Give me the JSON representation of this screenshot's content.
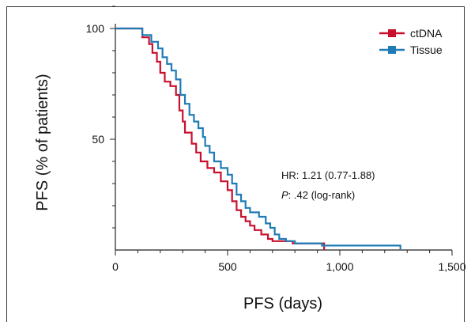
{
  "chart_data": {
    "type": "line",
    "step": true,
    "xlabel": "PFS (days)",
    "ylabel": "PFS (% of patients)",
    "xlim": [
      0,
      1500
    ],
    "ylim": [
      0,
      110
    ],
    "x_ticks": [
      0,
      500,
      1000,
      1500
    ],
    "x_tick_labels": [
      "0",
      "500",
      "1,000",
      "1,500"
    ],
    "y_ticks": [
      50,
      100
    ],
    "y_tick_labels": [
      "50",
      "100"
    ],
    "legend_position": "top-right",
    "annotations": {
      "hr": "HR: 1.21 (0.77-1.88)",
      "p_label": "P",
      "p_rest": ": .42 (log-rank)"
    },
    "series": [
      {
        "name": "ctDNA",
        "color": "#c8102e",
        "points": [
          [
            0,
            100
          ],
          [
            115,
            100
          ],
          [
            120,
            96
          ],
          [
            150,
            93
          ],
          [
            165,
            89
          ],
          [
            185,
            85
          ],
          [
            200,
            80
          ],
          [
            220,
            76
          ],
          [
            245,
            74
          ],
          [
            270,
            70
          ],
          [
            285,
            63
          ],
          [
            300,
            58
          ],
          [
            310,
            53
          ],
          [
            340,
            48
          ],
          [
            360,
            44
          ],
          [
            380,
            40
          ],
          [
            410,
            37
          ],
          [
            440,
            35
          ],
          [
            470,
            31
          ],
          [
            500,
            27
          ],
          [
            520,
            22
          ],
          [
            540,
            18
          ],
          [
            560,
            15
          ],
          [
            580,
            13
          ],
          [
            600,
            11
          ],
          [
            620,
            9
          ],
          [
            650,
            7
          ],
          [
            680,
            5
          ],
          [
            700,
            4
          ],
          [
            750,
            4
          ],
          [
            790,
            3
          ],
          [
            830,
            3
          ],
          [
            930,
            3
          ],
          [
            930,
            0
          ]
        ]
      },
      {
        "name": "Tissue",
        "color": "#1f7bb6",
        "points": [
          [
            0,
            100
          ],
          [
            115,
            100
          ],
          [
            120,
            97
          ],
          [
            160,
            94
          ],
          [
            190,
            91
          ],
          [
            210,
            87
          ],
          [
            230,
            84
          ],
          [
            250,
            81
          ],
          [
            270,
            77
          ],
          [
            290,
            70
          ],
          [
            310,
            66
          ],
          [
            330,
            61
          ],
          [
            350,
            58
          ],
          [
            370,
            55
          ],
          [
            390,
            51
          ],
          [
            400,
            47
          ],
          [
            420,
            44
          ],
          [
            440,
            40
          ],
          [
            470,
            37
          ],
          [
            500,
            34
          ],
          [
            520,
            30
          ],
          [
            540,
            25
          ],
          [
            560,
            22
          ],
          [
            580,
            19
          ],
          [
            600,
            17
          ],
          [
            640,
            15
          ],
          [
            670,
            12
          ],
          [
            690,
            10
          ],
          [
            710,
            7
          ],
          [
            730,
            5
          ],
          [
            760,
            4
          ],
          [
            800,
            3
          ],
          [
            840,
            3
          ],
          [
            900,
            3
          ],
          [
            920,
            2
          ],
          [
            1000,
            2
          ],
          [
            1200,
            2
          ],
          [
            1270,
            2
          ],
          [
            1270,
            0
          ]
        ]
      }
    ]
  }
}
